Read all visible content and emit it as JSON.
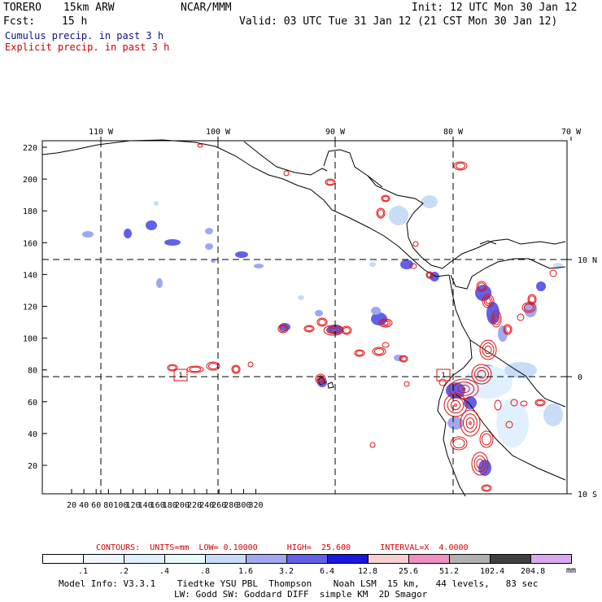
{
  "header": {
    "run_label": "TORERO",
    "resolution_model": "15km ARW",
    "org": "NCAR/MMM",
    "init": "Init: 12 UTC Mon 30 Jan 12",
    "fcst_label": "Fcst:",
    "fcst_hours": "15 h",
    "valid": "Valid: 03 UTC Tue 31 Jan 12 (21 CST Mon 30 Jan 12)",
    "legend_cumulus": "Cumulus precip. in past 3 h",
    "legend_explicit": "Explicit precip. in past 3 h"
  },
  "colors": {
    "cumulus_text": "#101090",
    "explicit_text": "#d00000",
    "contour": "#e01010",
    "land_outline": "#000000"
  },
  "map": {
    "lon_labels": [
      "110 W",
      "100 W",
      "90 W",
      "80 W",
      "70 W"
    ],
    "lat_labels": [
      "10 N",
      "0",
      "10 S"
    ],
    "x_ticks": [
      "20",
      "40",
      "60",
      "80",
      "100",
      "120",
      "140",
      "160",
      "180",
      "200",
      "220",
      "240",
      "260",
      "280",
      "300",
      "320"
    ],
    "y_ticks": [
      "20",
      "40",
      "60",
      "80",
      "100",
      "120",
      "140",
      "160",
      "180",
      "200",
      "220"
    ],
    "station_markers": [
      "1",
      "1"
    ]
  },
  "contour_info": {
    "text": "CONTOURS:  UNITS=mm  LOW= 0.10000      HIGH=  25.600      INTERVAL=X  4.0000"
  },
  "colorbar": {
    "labels": [
      ".1",
      ".2",
      ".4",
      ".8",
      "1.6",
      "3.2",
      "6.4",
      "12.8",
      "25.6",
      "51.2",
      "102.4",
      "204.8"
    ],
    "unit": "mm",
    "colors": [
      "#ffffff",
      "#f0f6ff",
      "#e0f0ff",
      "#e8fafa",
      "#c8dcf8",
      "#a0a8f0",
      "#6060e8",
      "#1818e0",
      "#f8d0d0",
      "#f090c0",
      "#b0b0b0",
      "#404040",
      "#d8a8f0"
    ]
  },
  "footer": {
    "line1": "Model Info: V3.3.1    Tiedtke YSU PBL  Thompson    Noah LSM  15 km,   44 levels,   83 sec",
    "line2": "LW: Godd SW: Goddard DIFF  simple KM  2D Smagor"
  }
}
